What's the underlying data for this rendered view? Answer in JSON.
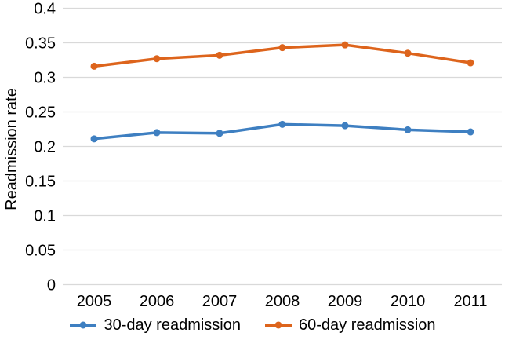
{
  "chart_data": {
    "type": "line",
    "title": "",
    "xlabel": "",
    "ylabel": "Readmission rate",
    "categories": [
      "2005",
      "2006",
      "2007",
      "2008",
      "2009",
      "2010",
      "2011"
    ],
    "series": [
      {
        "name": "30-day readmission",
        "color": "#3E7FC1",
        "values": [
          0.211,
          0.22,
          0.219,
          0.232,
          0.23,
          0.224,
          0.221
        ]
      },
      {
        "name": "60-day readmission",
        "color": "#DD641C",
        "values": [
          0.316,
          0.327,
          0.332,
          0.343,
          0.347,
          0.335,
          0.321
        ]
      }
    ],
    "ylim": [
      0,
      0.4
    ],
    "ytick_step": 0.05,
    "ytick_labels": [
      "0",
      "0.05",
      "0.1",
      "0.15",
      "0.2",
      "0.25",
      "0.3",
      "0.35",
      "0.4"
    ],
    "grid": "horizontal",
    "gridline_color": "#D9D9D9",
    "text_color": "#000000",
    "background_color": "#FFFFFF",
    "legend_position": "bottom"
  }
}
